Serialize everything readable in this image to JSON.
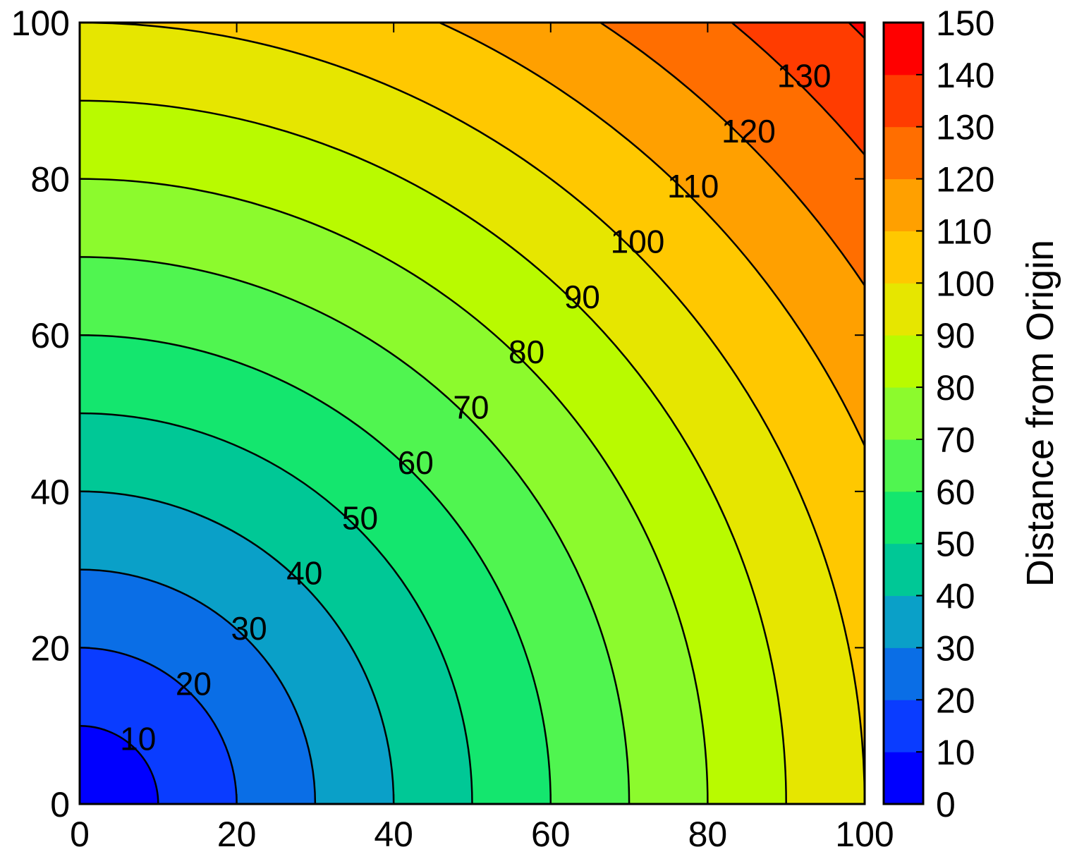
{
  "chart_data": {
    "type": "contour",
    "title": "",
    "xlabel": "",
    "ylabel": "",
    "function": "z = sqrt(x^2 + y^2)",
    "xlim": [
      0,
      100
    ],
    "ylim": [
      0,
      100
    ],
    "x_ticks": [
      0,
      20,
      40,
      60,
      80,
      100
    ],
    "y_ticks": [
      0,
      20,
      40,
      60,
      80,
      100
    ],
    "x_tick_labels": [
      "0",
      "20",
      "40",
      "60",
      "80",
      "100"
    ],
    "y_tick_labels": [
      "0",
      "20",
      "40",
      "60",
      "80",
      "100"
    ],
    "contour_levels": [
      10,
      20,
      30,
      40,
      50,
      60,
      70,
      80,
      90,
      100,
      110,
      120,
      130,
      140
    ],
    "contour_labels": [
      "10",
      "20",
      "30",
      "40",
      "50",
      "60",
      "70",
      "80",
      "90",
      "100",
      "110",
      "120",
      "130"
    ],
    "colorbar": {
      "label": "Distance from Origin",
      "range": [
        0,
        150
      ],
      "ticks": [
        0,
        10,
        20,
        30,
        40,
        50,
        60,
        70,
        80,
        90,
        100,
        110,
        120,
        130,
        140,
        150
      ],
      "tick_labels": [
        "0",
        "10",
        "20",
        "30",
        "40",
        "50",
        "60",
        "70",
        "80",
        "90",
        "100",
        "110",
        "120",
        "130",
        "140",
        "150"
      ],
      "band_colors": [
        "#0000ff",
        "#0a3cff",
        "#0a6ee6",
        "#0aa0c8",
        "#00c896",
        "#14e66e",
        "#50f550",
        "#8cfa2d",
        "#b9fa00",
        "#e6e600",
        "#ffc800",
        "#ffa000",
        "#ff6e00",
        "#ff3c00",
        "#ff0000"
      ]
    },
    "grid": false,
    "legend": "colorbar-right"
  }
}
